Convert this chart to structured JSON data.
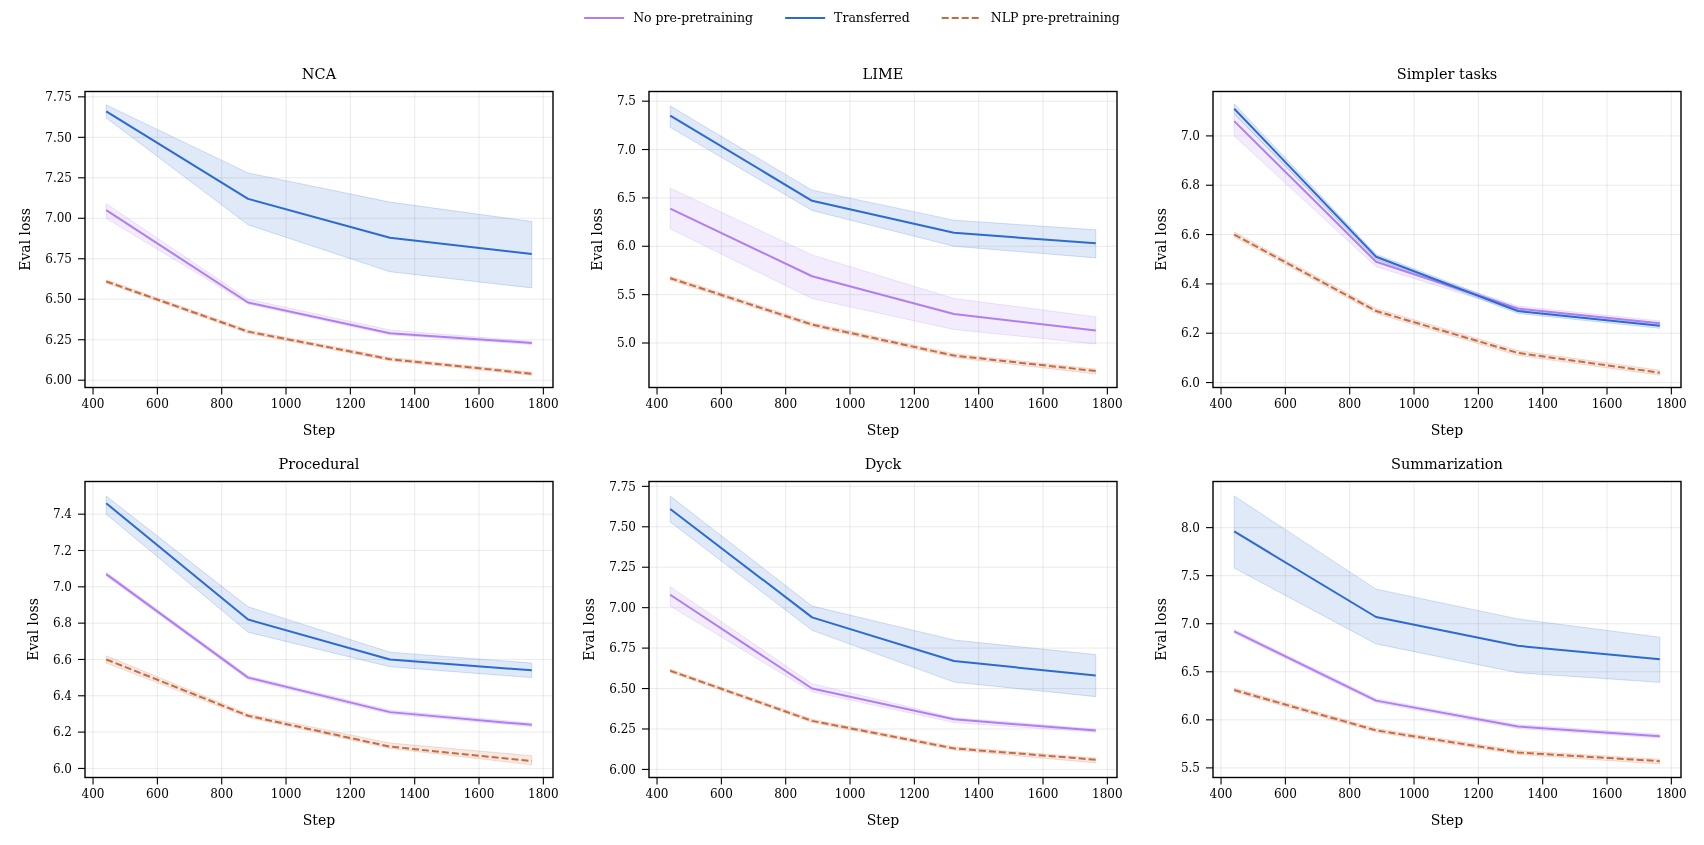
{
  "chart_data": [
    {
      "type": "line",
      "title": "NCA",
      "xlabel": "Step",
      "ylabel": "Eval loss",
      "legend": "top",
      "grid": true,
      "x": [
        441,
        882,
        1323,
        1764
      ],
      "xlim": [
        375,
        1830
      ],
      "xticks": [
        400,
        600,
        800,
        1000,
        1200,
        1400,
        1600,
        1800
      ],
      "ylim": [
        5.955,
        7.783
      ],
      "yticks": [
        {
          "value": 6,
          "label": "6.00"
        },
        6.25,
        {
          "value": 6.5,
          "label": "6.50"
        },
        6.75,
        {
          "value": 7,
          "label": "7.00"
        },
        7.25,
        {
          "value": 7.5,
          "label": "7.50"
        },
        7.75
      ],
      "series": [
        {
          "name": "No pre-pretraining",
          "color": "#b07ef0",
          "values": [
            7.05,
            6.48,
            6.29,
            6.23
          ],
          "lower": [
            7.0,
            6.47,
            6.28,
            6.22
          ],
          "upper": [
            7.09,
            6.5,
            6.31,
            6.24
          ]
        },
        {
          "name": "Transferred",
          "color": "#2b6bd1",
          "values": [
            7.66,
            7.12,
            6.88,
            6.78
          ],
          "lower": [
            7.62,
            6.96,
            6.67,
            6.57
          ],
          "upper": [
            7.7,
            7.28,
            7.1,
            6.98
          ]
        },
        {
          "name": "NLP pre-pretraining",
          "color": "#c76b40",
          "line_style": "dashed",
          "values": [
            6.61,
            6.3,
            6.13,
            6.04
          ],
          "lower": [
            6.6,
            6.29,
            6.12,
            6.03
          ],
          "upper": [
            6.62,
            6.31,
            6.14,
            6.05
          ]
        }
      ]
    },
    {
      "type": "line",
      "title": "LIME",
      "xlabel": "Step",
      "ylabel": "Eval loss",
      "grid": true,
      "x": [
        441,
        882,
        1323,
        1764
      ],
      "xlim": [
        375,
        1830
      ],
      "xticks": [
        400,
        600,
        800,
        1000,
        1200,
        1400,
        1600,
        1800
      ],
      "ylim": [
        4.54,
        7.6
      ],
      "yticks": [
        {
          "value": 5,
          "label": "5.0"
        },
        5.5,
        {
          "value": 6,
          "label": "6.0"
        },
        6.5,
        {
          "value": 7,
          "label": "7.0"
        },
        7.5
      ],
      "series": [
        {
          "color": "#b07ef0",
          "values": [
            6.39,
            5.69,
            5.3,
            5.13
          ],
          "lower": [
            6.18,
            5.46,
            5.14,
            4.99
          ],
          "upper": [
            6.6,
            5.91,
            5.46,
            5.27
          ]
        },
        {
          "color": "#2b6bd1",
          "values": [
            7.35,
            6.47,
            6.14,
            6.03
          ],
          "lower": [
            7.23,
            6.37,
            6.0,
            5.88
          ],
          "upper": [
            7.45,
            6.58,
            6.27,
            6.17
          ]
        },
        {
          "color": "#c76b40",
          "line_style": "dashed",
          "values": [
            5.67,
            5.19,
            4.87,
            4.71
          ],
          "lower": [
            5.65,
            5.17,
            4.85,
            4.68
          ],
          "upper": [
            5.69,
            5.21,
            4.89,
            4.73
          ]
        }
      ]
    },
    {
      "type": "line",
      "title": "Simpler tasks",
      "xlabel": "Step",
      "ylabel": "Eval loss",
      "grid": true,
      "x": [
        441,
        882,
        1323,
        1764
      ],
      "xlim": [
        375,
        1830
      ],
      "xticks": [
        400,
        600,
        800,
        1000,
        1200,
        1400,
        1600,
        1800
      ],
      "ylim": [
        5.98,
        7.18
      ],
      "yticks": [
        {
          "value": 6,
          "label": "6.0"
        },
        6.2,
        6.4,
        6.6,
        6.8,
        {
          "value": 7,
          "label": "7.0"
        }
      ],
      "series": [
        {
          "color": "#b07ef0",
          "values": [
            7.06,
            6.49,
            6.3,
            6.24
          ],
          "lower": [
            7.0,
            6.47,
            6.29,
            6.23
          ],
          "upper": [
            7.09,
            6.5,
            6.31,
            6.25
          ]
        },
        {
          "color": "#2b6bd1",
          "values": [
            7.11,
            6.51,
            6.29,
            6.23
          ],
          "lower": [
            7.09,
            6.5,
            6.28,
            6.22
          ],
          "upper": [
            7.13,
            6.52,
            6.3,
            6.24
          ]
        },
        {
          "color": "#c76b40",
          "line_style": "dashed",
          "values": [
            6.6,
            6.29,
            6.12,
            6.04
          ],
          "lower": [
            6.59,
            6.28,
            6.11,
            6.03
          ],
          "upper": [
            6.61,
            6.3,
            6.13,
            6.05
          ]
        }
      ]
    },
    {
      "type": "line",
      "title": "Procedural",
      "xlabel": "Step",
      "ylabel": "Eval loss",
      "grid": true,
      "x": [
        441,
        882,
        1323,
        1764
      ],
      "xlim": [
        375,
        1830
      ],
      "xticks": [
        400,
        600,
        800,
        1000,
        1200,
        1400,
        1600,
        1800
      ],
      "ylim": [
        5.95,
        7.58
      ],
      "yticks": [
        {
          "value": 6,
          "label": "6.0"
        },
        6.2,
        6.4,
        6.6,
        6.8,
        {
          "value": 7,
          "label": "7.0"
        },
        7.2,
        7.4
      ],
      "series": [
        {
          "color": "#b07ef0",
          "values": [
            7.07,
            6.5,
            6.31,
            6.24
          ],
          "lower": [
            7.06,
            6.49,
            6.3,
            6.23
          ],
          "upper": [
            7.08,
            6.51,
            6.32,
            6.25
          ]
        },
        {
          "color": "#2b6bd1",
          "values": [
            7.46,
            6.82,
            6.6,
            6.54
          ],
          "lower": [
            7.4,
            6.75,
            6.56,
            6.5
          ],
          "upper": [
            7.5,
            6.89,
            6.64,
            6.58
          ]
        },
        {
          "color": "#c76b40",
          "line_style": "dashed",
          "values": [
            6.6,
            6.29,
            6.12,
            6.04
          ],
          "lower": [
            6.58,
            6.28,
            6.11,
            6.02
          ],
          "upper": [
            6.62,
            6.3,
            6.14,
            6.07
          ]
        }
      ]
    },
    {
      "type": "line",
      "title": "Dyck",
      "xlabel": "Step",
      "ylabel": "Eval loss",
      "grid": true,
      "x": [
        441,
        882,
        1323,
        1764
      ],
      "xlim": [
        375,
        1830
      ],
      "xticks": [
        400,
        600,
        800,
        1000,
        1200,
        1400,
        1600,
        1800
      ],
      "ylim": [
        5.95,
        7.78
      ],
      "yticks": [
        {
          "value": 6,
          "label": "6.00"
        },
        6.25,
        {
          "value": 6.5,
          "label": "6.50"
        },
        6.75,
        {
          "value": 7,
          "label": "7.00"
        },
        7.25,
        {
          "value": 7.5,
          "label": "7.50"
        },
        7.75
      ],
      "series": [
        {
          "color": "#b07ef0",
          "values": [
            7.08,
            6.5,
            6.31,
            6.24
          ],
          "lower": [
            7.01,
            6.48,
            6.29,
            6.23
          ],
          "upper": [
            7.13,
            6.53,
            6.32,
            6.25
          ]
        },
        {
          "color": "#2b6bd1",
          "values": [
            7.61,
            6.94,
            6.67,
            6.58
          ],
          "lower": [
            7.53,
            6.86,
            6.54,
            6.45
          ],
          "upper": [
            7.69,
            7.01,
            6.8,
            6.71
          ]
        },
        {
          "color": "#c76b40",
          "line_style": "dashed",
          "values": [
            6.61,
            6.3,
            6.13,
            6.06
          ],
          "lower": [
            6.6,
            6.29,
            6.12,
            6.04
          ],
          "upper": [
            6.62,
            6.31,
            6.14,
            6.07
          ]
        }
      ]
    },
    {
      "type": "line",
      "title": "Summarization",
      "xlabel": "Step",
      "ylabel": "Eval loss",
      "grid": true,
      "x": [
        441,
        882,
        1323,
        1764
      ],
      "xlim": [
        375,
        1830
      ],
      "xticks": [
        400,
        600,
        800,
        1000,
        1200,
        1400,
        1600,
        1800
      ],
      "ylim": [
        5.4,
        8.48
      ],
      "yticks": [
        5.5,
        {
          "value": 6,
          "label": "6.0"
        },
        6.5,
        {
          "value": 7,
          "label": "7.0"
        },
        7.5,
        {
          "value": 8,
          "label": "8.0"
        }
      ],
      "series": [
        {
          "color": "#b07ef0",
          "values": [
            6.92,
            6.2,
            5.93,
            5.83
          ],
          "lower": [
            6.9,
            6.18,
            5.91,
            5.81
          ],
          "upper": [
            6.94,
            6.22,
            5.95,
            5.85
          ]
        },
        {
          "color": "#2b6bd1",
          "values": [
            7.96,
            7.07,
            6.77,
            6.63
          ],
          "lower": [
            7.58,
            6.79,
            6.49,
            6.39
          ],
          "upper": [
            8.33,
            7.36,
            7.05,
            6.86
          ]
        },
        {
          "color": "#c76b40",
          "line_style": "dashed",
          "values": [
            6.31,
            5.89,
            5.66,
            5.57
          ],
          "lower": [
            6.29,
            5.87,
            5.64,
            5.54
          ],
          "upper": [
            6.33,
            5.91,
            5.68,
            5.59
          ]
        }
      ]
    }
  ]
}
